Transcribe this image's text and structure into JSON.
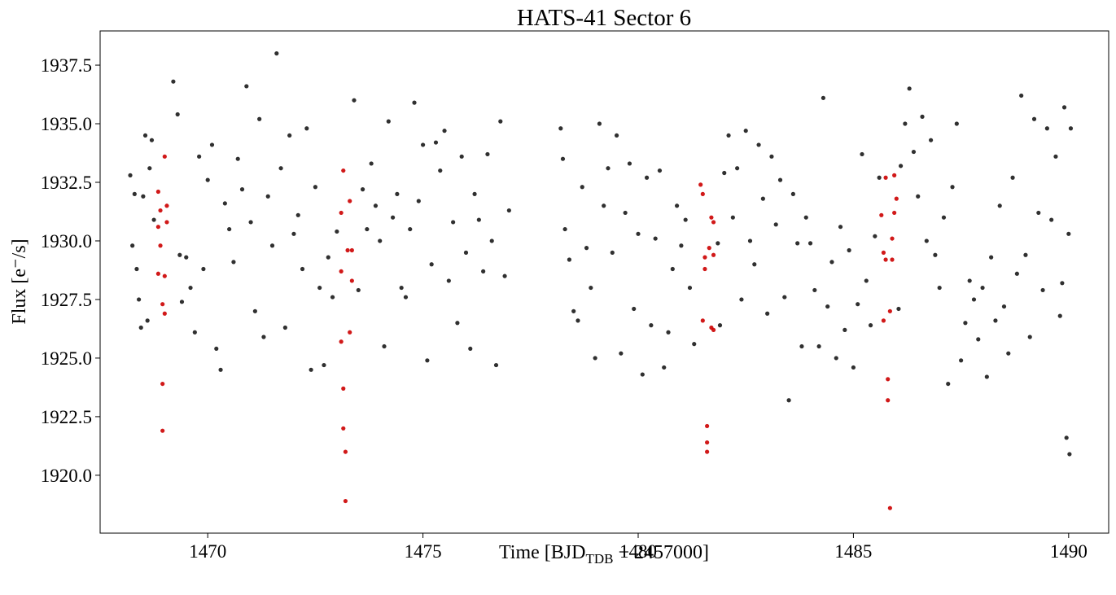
{
  "chart_data": {
    "type": "scatter",
    "title": "HATS-41 Sector 6",
    "xlabel": "Time [BJD",
    "xlabel_sub": "TDB",
    "xlabel_end": " − 2457000]",
    "ylabel": "Flux [e⁻/s]",
    "xlim": [
      1467.5,
      1490.93
    ],
    "ylim": [
      1917.53,
      1938.96
    ],
    "xticks": [
      1470,
      1475,
      1480,
      1485,
      1490
    ],
    "yticks": [
      {
        "value": 1920.0,
        "label": "1920.0"
      },
      1922.5,
      {
        "value": 1925.0,
        "label": "1925.0"
      },
      1927.5,
      {
        "value": 1930.0,
        "label": "1930.0"
      },
      1932.5,
      {
        "value": 1935.0,
        "label": "1935.0"
      },
      1937.5
    ],
    "series": [
      {
        "color": "#1a1a1a",
        "x": [
          1468.2,
          1468.25,
          1468.3,
          1468.35,
          1468.4,
          1468.45,
          1468.5,
          1468.55,
          1468.6,
          1468.65,
          1468.7,
          1468.75,
          1469.2,
          1469.3,
          1469.35,
          1469.4,
          1469.5,
          1469.6,
          1469.7,
          1469.8,
          1469.9,
          1470.0,
          1470.1,
          1470.2,
          1470.3,
          1470.4,
          1470.5,
          1470.6,
          1470.7,
          1470.8,
          1470.9,
          1471.0,
          1471.1,
          1471.2,
          1471.3,
          1471.4,
          1471.5,
          1471.6,
          1471.7,
          1471.8,
          1471.9,
          1472.0,
          1472.1,
          1472.2,
          1472.3,
          1472.4,
          1472.5,
          1472.6,
          1472.7,
          1472.8,
          1472.9,
          1473.0,
          1473.4,
          1473.5,
          1473.6,
          1473.7,
          1473.8,
          1473.9,
          1474.0,
          1474.1,
          1474.2,
          1474.3,
          1474.4,
          1474.5,
          1474.6,
          1474.7,
          1474.8,
          1474.9,
          1475.0,
          1475.1,
          1475.2,
          1475.3,
          1475.4,
          1475.5,
          1475.6,
          1475.7,
          1475.8,
          1475.9,
          1476.0,
          1476.1,
          1476.2,
          1476.3,
          1476.4,
          1476.5,
          1476.6,
          1476.7,
          1476.8,
          1476.9,
          1477.0,
          1478.2,
          1478.25,
          1478.3,
          1478.4,
          1478.5,
          1478.6,
          1478.7,
          1478.8,
          1478.9,
          1479.0,
          1479.1,
          1479.2,
          1479.3,
          1479.4,
          1479.5,
          1479.6,
          1479.7,
          1479.8,
          1479.9,
          1480.0,
          1480.1,
          1480.2,
          1480.3,
          1480.4,
          1480.5,
          1480.6,
          1480.7,
          1480.8,
          1480.9,
          1481.0,
          1481.1,
          1481.2,
          1481.3,
          1481.85,
          1481.9,
          1482.0,
          1482.1,
          1482.2,
          1482.3,
          1482.4,
          1482.5,
          1482.6,
          1482.7,
          1482.8,
          1482.9,
          1483.0,
          1483.1,
          1483.2,
          1483.3,
          1483.4,
          1483.5,
          1483.6,
          1483.7,
          1483.8,
          1483.9,
          1484.0,
          1484.1,
          1484.2,
          1484.3,
          1484.4,
          1484.5,
          1484.6,
          1484.7,
          1484.8,
          1484.9,
          1485.0,
          1485.1,
          1485.2,
          1485.3,
          1485.4,
          1485.5,
          1485.6,
          1486.05,
          1486.1,
          1486.2,
          1486.3,
          1486.4,
          1486.5,
          1486.6,
          1486.7,
          1486.8,
          1486.9,
          1487.0,
          1487.1,
          1487.2,
          1487.3,
          1487.4,
          1487.5,
          1487.6,
          1487.7,
          1487.8,
          1487.9,
          1488.0,
          1488.1,
          1488.2,
          1488.3,
          1488.4,
          1488.5,
          1488.6,
          1488.7,
          1488.8,
          1488.9,
          1489.0,
          1489.1,
          1489.2,
          1489.3,
          1489.4,
          1489.5,
          1489.6,
          1489.7,
          1489.8,
          1489.85,
          1489.9,
          1489.95,
          1490.0,
          1490.02,
          1490.05
        ],
        "values": [
          1932.8,
          1929.8,
          1932.0,
          1928.8,
          1927.5,
          1926.3,
          1931.9,
          1934.5,
          1926.6,
          1933.1,
          1934.3,
          1930.9,
          1936.8,
          1935.4,
          1929.4,
          1927.4,
          1929.3,
          1928.0,
          1926.1,
          1933.6,
          1928.8,
          1932.6,
          1934.1,
          1925.4,
          1924.5,
          1931.6,
          1930.5,
          1929.1,
          1933.5,
          1932.2,
          1936.6,
          1930.8,
          1927.0,
          1935.2,
          1925.9,
          1931.9,
          1929.8,
          1938.0,
          1933.1,
          1926.3,
          1934.5,
          1930.3,
          1931.1,
          1928.8,
          1934.8,
          1924.5,
          1932.3,
          1928.0,
          1924.7,
          1929.3,
          1927.6,
          1930.4,
          1936.0,
          1927.9,
          1932.2,
          1930.5,
          1933.3,
          1931.5,
          1930.0,
          1925.5,
          1935.1,
          1931.0,
          1932.0,
          1928.0,
          1927.6,
          1930.5,
          1935.9,
          1931.7,
          1934.1,
          1924.9,
          1929.0,
          1934.2,
          1933.0,
          1934.7,
          1928.3,
          1930.8,
          1926.5,
          1933.6,
          1929.5,
          1925.4,
          1932.0,
          1930.9,
          1928.7,
          1933.7,
          1930.0,
          1924.7,
          1935.1,
          1928.5,
          1931.3,
          1934.8,
          1933.5,
          1930.5,
          1929.2,
          1927.0,
          1926.6,
          1932.3,
          1929.7,
          1928.0,
          1925.0,
          1935.0,
          1931.5,
          1933.1,
          1929.5,
          1934.5,
          1925.2,
          1931.2,
          1933.3,
          1927.1,
          1930.3,
          1924.3,
          1932.7,
          1926.4,
          1930.1,
          1933.0,
          1924.6,
          1926.1,
          1928.8,
          1931.5,
          1929.8,
          1930.9,
          1928.0,
          1925.6,
          1929.9,
          1926.4,
          1932.9,
          1934.5,
          1931.0,
          1933.1,
          1927.5,
          1934.7,
          1930.0,
          1929.0,
          1934.1,
          1931.8,
          1926.9,
          1933.6,
          1930.7,
          1932.6,
          1927.6,
          1923.2,
          1932.0,
          1929.9,
          1925.5,
          1931.0,
          1929.9,
          1927.9,
          1925.5,
          1936.1,
          1927.2,
          1929.1,
          1925.0,
          1930.6,
          1926.2,
          1929.6,
          1924.6,
          1927.3,
          1933.7,
          1928.3,
          1926.4,
          1930.2,
          1932.7,
          1927.1,
          1933.2,
          1935.0,
          1936.5,
          1933.8,
          1931.9,
          1935.3,
          1930.0,
          1934.3,
          1929.4,
          1928.0,
          1931.0,
          1923.9,
          1932.3,
          1935.0,
          1924.9,
          1926.5,
          1928.3,
          1927.5,
          1925.8,
          1928.0,
          1924.2,
          1929.3,
          1926.6,
          1931.5,
          1927.2,
          1925.2,
          1932.7,
          1928.6,
          1936.2,
          1929.4,
          1925.9,
          1935.2,
          1931.2,
          1927.9,
          1934.8,
          1930.9,
          1933.6,
          1926.8,
          1928.2,
          1935.7,
          1921.6,
          1930.3,
          1920.9,
          1934.8
        ]
      },
      {
        "color": "#cc0000",
        "x": [
          1468.85,
          1468.9,
          1468.85,
          1468.9,
          1468.85,
          1468.95,
          1469.0,
          1468.95,
          1468.95,
          1469.0,
          1469.05,
          1469.05,
          1469.0,
          1473.1,
          1473.15,
          1473.1,
          1473.1,
          1473.15,
          1473.15,
          1473.2,
          1473.2,
          1473.25,
          1473.3,
          1473.3,
          1473.35,
          1473.35,
          1481.45,
          1481.5,
          1481.5,
          1481.55,
          1481.55,
          1481.6,
          1481.6,
          1481.6,
          1481.65,
          1481.7,
          1481.7,
          1481.75,
          1481.75,
          1481.75,
          1485.65,
          1485.7,
          1485.7,
          1485.75,
          1485.75,
          1485.8,
          1485.8,
          1485.85,
          1485.85,
          1485.9,
          1485.9,
          1485.95,
          1485.95,
          1486.0
        ],
        "values": [
          1932.1,
          1931.3,
          1930.6,
          1929.8,
          1928.6,
          1927.3,
          1926.9,
          1923.9,
          1921.9,
          1933.6,
          1931.5,
          1930.8,
          1928.5,
          1931.2,
          1933.0,
          1928.7,
          1925.7,
          1923.7,
          1922.0,
          1921.0,
          1918.9,
          1929.6,
          1931.7,
          1926.1,
          1928.3,
          1929.6,
          1932.4,
          1932.0,
          1926.6,
          1929.3,
          1928.8,
          1922.1,
          1921.4,
          1921.0,
          1929.7,
          1931.0,
          1926.3,
          1929.4,
          1930.8,
          1926.2,
          1931.1,
          1929.5,
          1926.6,
          1932.7,
          1929.2,
          1924.1,
          1923.2,
          1918.6,
          1927.0,
          1930.1,
          1929.2,
          1931.2,
          1932.8,
          1931.8
        ]
      }
    ]
  }
}
